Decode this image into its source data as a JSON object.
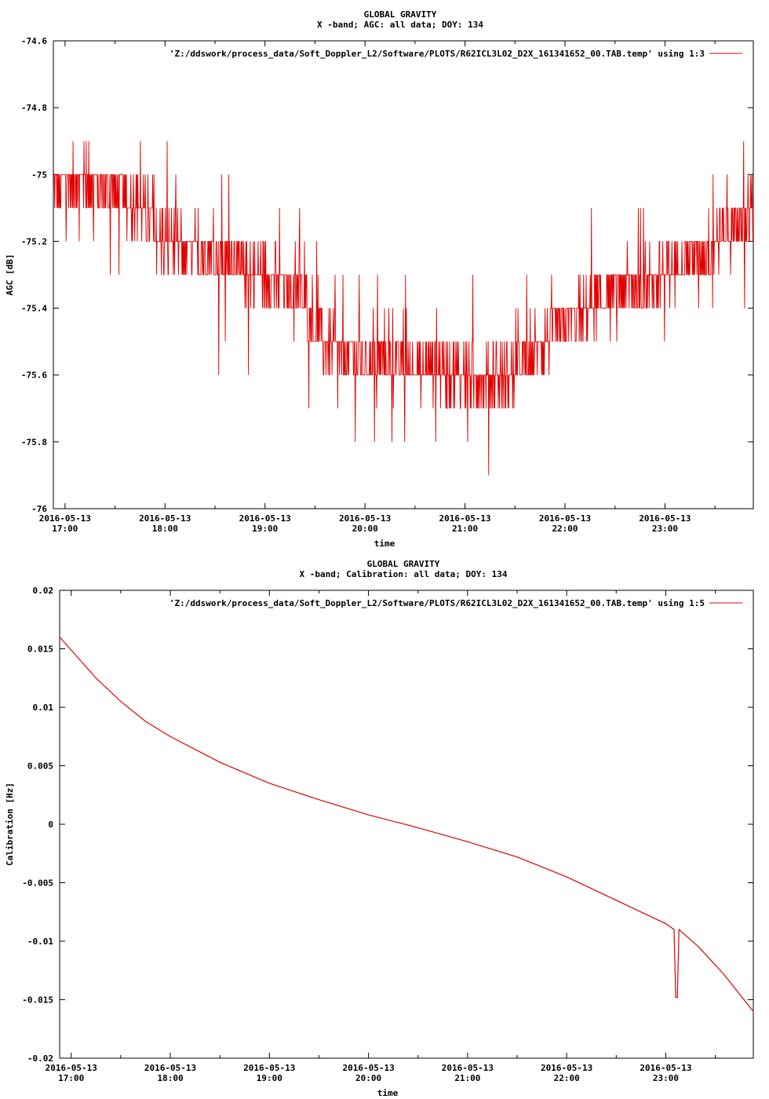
{
  "chart_data": [
    {
      "type": "line",
      "title": "GLOBAL GRAVITY",
      "subtitle": "X -band; AGC: all data; DOY: 134",
      "xlabel": "time",
      "ylabel": "AGC [dB]",
      "ylim": [
        -76,
        -74.6
      ],
      "y_ticks": [
        "-74.6",
        "-74.8",
        "-75",
        "-75.2",
        "-75.4",
        "-75.6",
        "-75.8",
        "-76"
      ],
      "x_tick_dates": [
        "2016-05-13",
        "2016-05-13",
        "2016-05-13",
        "2016-05-13",
        "2016-05-13",
        "2016-05-13",
        "2016-05-13"
      ],
      "x_tick_times": [
        "17:00",
        "18:00",
        "19:00",
        "20:00",
        "21:00",
        "22:00",
        "23:00"
      ],
      "xlim": [
        "2016-05-13 16:53",
        "2016-05-13 23:53"
      ],
      "grid": false,
      "legend_position": "top-right",
      "series": [
        {
          "name": "'Z:/ddswork/process_data/Soft_Doppler_L2/Software/PLOTS/R62ICL3L02_D2X_161341652_00.TAB.temp' using 1:3",
          "color": "#e00000",
          "x": [
            "16:53",
            "17:10",
            "17:27",
            "17:45",
            "18:00",
            "18:30",
            "19:00",
            "19:20",
            "19:35",
            "19:50",
            "20:00",
            "20:30",
            "21:00",
            "21:30",
            "21:45",
            "22:00",
            "22:30",
            "23:00",
            "23:30",
            "23:53"
          ],
          "values": [
            -75.05,
            -75.0,
            -75.05,
            -75.1,
            -75.2,
            -75.25,
            -75.3,
            -75.35,
            -75.5,
            -75.55,
            -75.55,
            -75.57,
            -75.6,
            -75.6,
            -75.5,
            -75.45,
            -75.35,
            -75.3,
            -75.2,
            -75.1
          ]
        }
      ]
    },
    {
      "type": "line",
      "title": "GLOBAL GRAVITY",
      "subtitle": "X -band; Calibration: all data; DOY: 134",
      "xlabel": "time",
      "ylabel": "Calibration [Hz]",
      "ylim": [
        -0.02,
        0.02
      ],
      "y_ticks": [
        "0.02",
        "0.015",
        "0.01",
        "0.005",
        "0",
        "-0.005",
        "-0.01",
        "-0.015",
        "-0.02"
      ],
      "x_tick_dates": [
        "2016-05-13",
        "2016-05-13",
        "2016-05-13",
        "2016-05-13",
        "2016-05-13",
        "2016-05-13",
        "2016-05-13"
      ],
      "x_tick_times": [
        "17:00",
        "18:00",
        "19:00",
        "20:00",
        "21:00",
        "22:00",
        "23:00"
      ],
      "xlim": [
        "2016-05-13 16:53",
        "2016-05-13 23:53"
      ],
      "grid": false,
      "legend_position": "top-right",
      "series": [
        {
          "name": "'Z:/ddswork/process_data/Soft_Doppler_L2/Software/PLOTS/R62ICL3L02_D2X_161341652_00.TAB.temp' using 1:5",
          "color": "#e00000",
          "x": [
            "16:53",
            "17:15",
            "17:30",
            "17:45",
            "18:00",
            "18:30",
            "19:00",
            "19:30",
            "20:00",
            "20:30",
            "21:00",
            "21:30",
            "22:00",
            "22:30",
            "23:00",
            "23:05",
            "23:06",
            "23:07",
            "23:08",
            "23:20",
            "23:35",
            "23:53"
          ],
          "values": [
            0.016,
            0.0125,
            0.0105,
            0.0088,
            0.0075,
            0.0053,
            0.0035,
            0.0021,
            0.0008,
            -0.0003,
            -0.0015,
            -0.0028,
            -0.0045,
            -0.0065,
            -0.0085,
            -0.009,
            -0.0148,
            -0.0148,
            -0.009,
            -0.0105,
            -0.0128,
            -0.016
          ]
        }
      ]
    }
  ]
}
